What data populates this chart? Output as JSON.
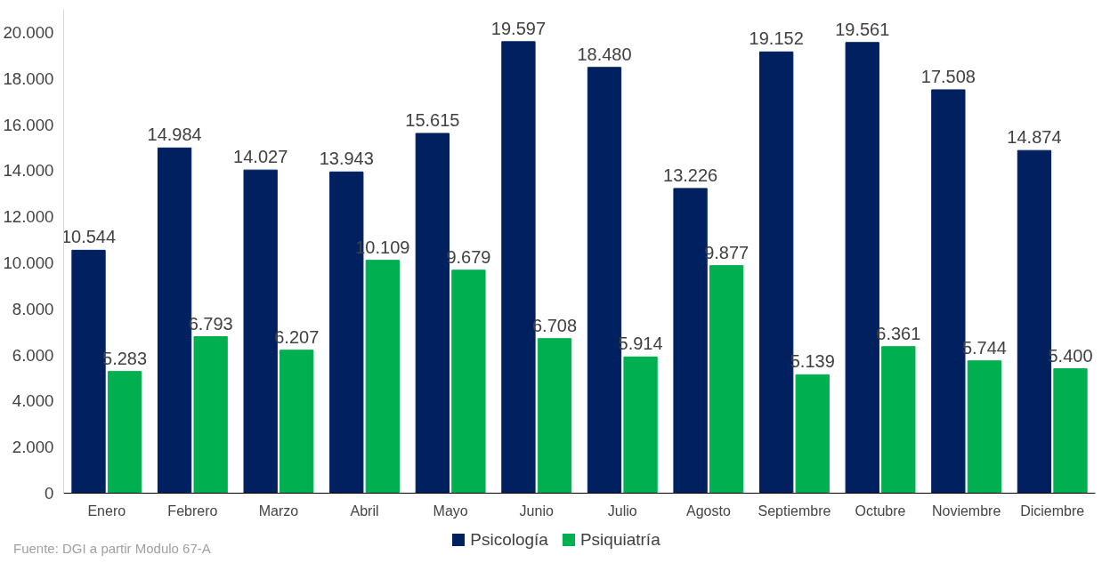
{
  "chart_data": {
    "type": "bar",
    "categories": [
      "Enero",
      "Febrero",
      "Marzo",
      "Abril",
      "Mayo",
      "Junio",
      "Julio",
      "Agosto",
      "Septiembre",
      "Octubre",
      "Noviembre",
      "Diciembre"
    ],
    "series": [
      {
        "name": "Psicología",
        "color": "#002060",
        "values": [
          10544,
          14984,
          14027,
          13943,
          15615,
          19597,
          18480,
          13226,
          19152,
          19561,
          17508,
          14874
        ],
        "value_labels": [
          "10.544",
          "14.984",
          "14.027",
          "13.943",
          "15.615",
          "19.597",
          "18.480",
          "13.226",
          "19.152",
          "19.561",
          "17.508",
          "14.874"
        ]
      },
      {
        "name": "Psiquiatría",
        "color": "#00b050",
        "values": [
          5283,
          6793,
          6207,
          10109,
          9679,
          6708,
          5914,
          9877,
          5139,
          6361,
          5744,
          5400
        ],
        "value_labels": [
          "5.283",
          "6.793",
          "6.207",
          "10.109",
          "9.679",
          "6.708",
          "5.914",
          "9.877",
          "5.139",
          "6.361",
          "5.744",
          "5.400"
        ]
      }
    ],
    "ylim": [
      0,
      21000
    ],
    "yticks": [
      {
        "value": 0,
        "label": "0"
      },
      {
        "value": 2000,
        "label": "2.000"
      },
      {
        "value": 4000,
        "label": "4.000"
      },
      {
        "value": 6000,
        "label": "6.000"
      },
      {
        "value": 8000,
        "label": "8.000"
      },
      {
        "value": 10000,
        "label": "10.000"
      },
      {
        "value": 12000,
        "label": "12.000"
      },
      {
        "value": 14000,
        "label": "14.000"
      },
      {
        "value": 16000,
        "label": "16.000"
      },
      {
        "value": 18000,
        "label": "18.000"
      },
      {
        "value": 20000,
        "label": "20.000"
      }
    ],
    "grid": false,
    "legend": "bottom",
    "annotations": [
      "Fuente: DGI a partir Modulo 67-A"
    ]
  }
}
